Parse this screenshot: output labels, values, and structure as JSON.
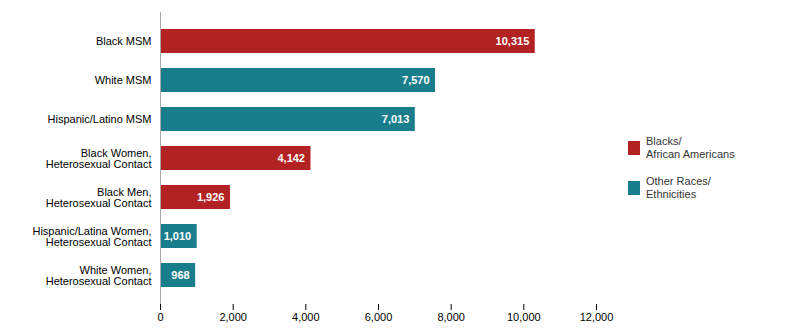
{
  "chart_data": {
    "type": "bar",
    "orientation": "horizontal",
    "categories": [
      "White Women,\nHeterosexual Contact",
      "Hispanic/Latina Women,\nHeterosexual Contact",
      "Black Men,\nHeterosexual Contact",
      "Black Women,\nHeterosexual Contact",
      "Hispanic/Latino MSM",
      "White MSM",
      "Black MSM"
    ],
    "series": [
      {
        "name": "Blacks/\nAfrican Americans",
        "color": "#b22222",
        "values": [
          null,
          null,
          1926,
          4142,
          null,
          null,
          10315
        ],
        "value_labels": [
          null,
          null,
          "1,926",
          "4,142",
          null,
          null,
          "10,315"
        ]
      },
      {
        "name": "Other Races/\nEthnicities",
        "color": "#1a7d8c",
        "values": [
          968,
          1010,
          null,
          null,
          7013,
          7570,
          null
        ],
        "value_labels": [
          "968",
          "1,010",
          null,
          null,
          "7,013",
          "7,570",
          null
        ]
      }
    ],
    "xlim": [
      0,
      12000
    ],
    "xticks": [
      0,
      {
        "value": 2000,
        "label": "2,000"
      },
      {
        "value": 4000,
        "label": "4,000"
      },
      {
        "value": 6000,
        "label": "6,000"
      },
      {
        "value": 8000,
        "label": "8,000"
      },
      {
        "value": 10000,
        "label": "10,000"
      },
      {
        "value": 12000,
        "label": "12,000"
      }
    ],
    "data_labels": true,
    "legend": "right",
    "grid": false
  }
}
